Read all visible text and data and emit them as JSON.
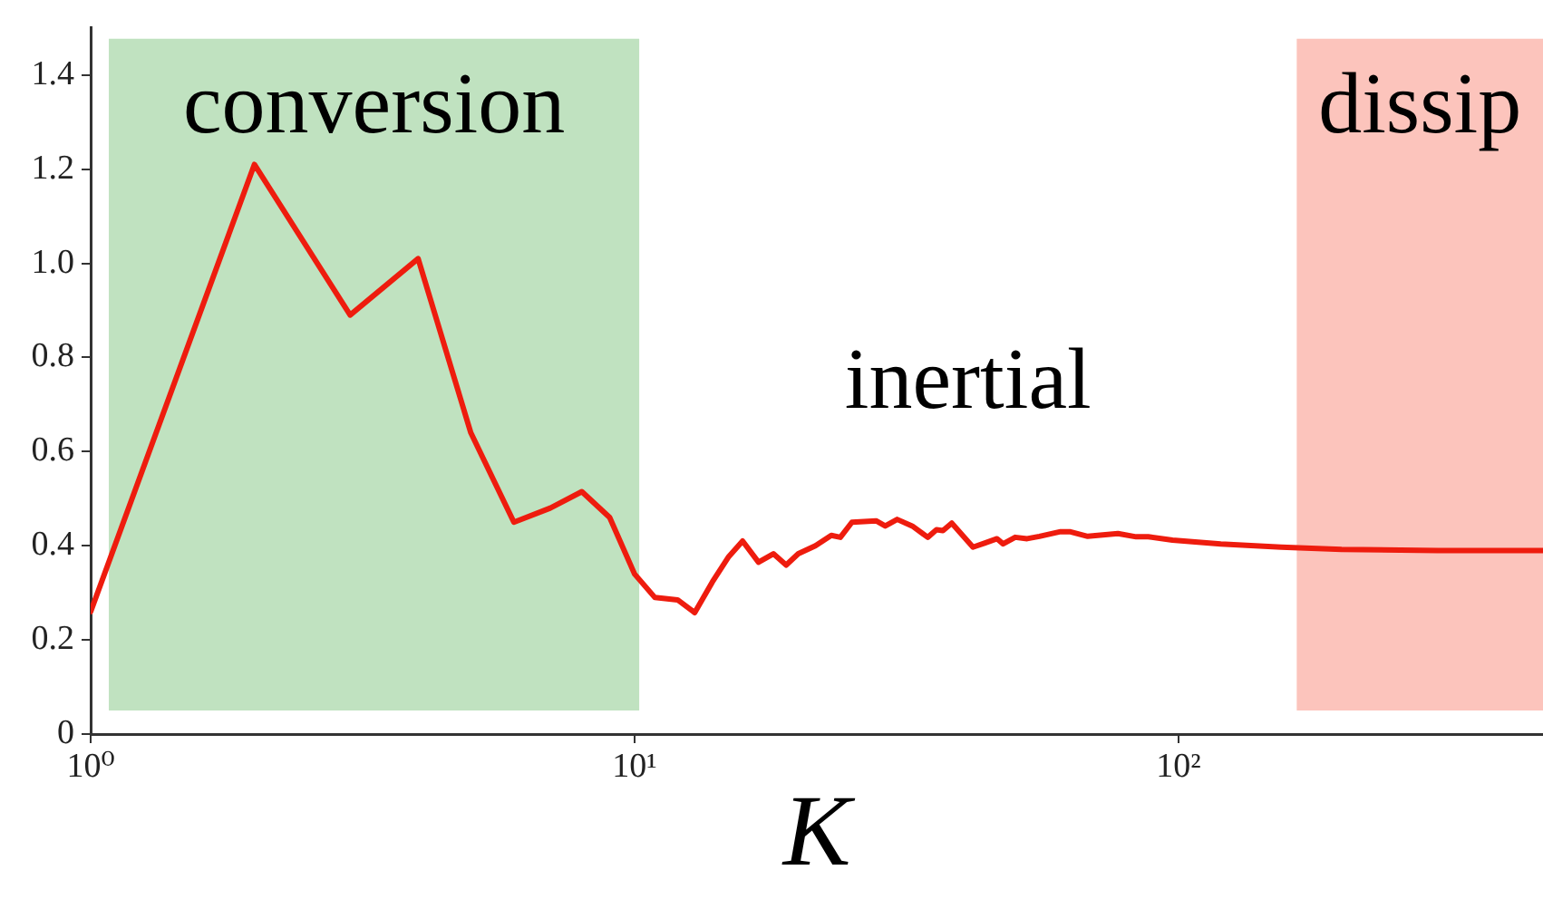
{
  "chart_data": {
    "type": "line",
    "xlabel": "K",
    "log": "x",
    "xlim": [
      1,
      468
    ],
    "xticks": [
      {
        "value": 1,
        "label": "10⁰"
      },
      {
        "value": 10,
        "label": "10¹"
      },
      {
        "value": 100,
        "label": "10²"
      }
    ],
    "ylim": [
      0,
      1.5
    ],
    "yticks": [
      0,
      0.2,
      0.4,
      0.6,
      0.8,
      {
        "value": 1,
        "label": "1.0"
      },
      1.2,
      1.4
    ],
    "grid": false,
    "legend": false,
    "marker": "none",
    "line_style": "solid",
    "bands": [
      {
        "axis": "x",
        "from": 1.08,
        "to": 10.2,
        "label": "conversion",
        "color": "#c0e2c0"
      },
      {
        "axis": "x",
        "from": 165,
        "to": 468,
        "label": "dissip",
        "color": "#fcc4bc"
      }
    ],
    "annotations": [
      "inertial"
    ],
    "series": [
      {
        "color": "#ee1c0e",
        "x": [
          1,
          2,
          3,
          4,
          5,
          6,
          7,
          8,
          9,
          10,
          10.9,
          12,
          12.9,
          13.9,
          14.9,
          15.8,
          16.9,
          18,
          19,
          20,
          21.5,
          23,
          23.9,
          25.1,
          27.8,
          28.9,
          30.4,
          32.4,
          34.6,
          35.9,
          36.9,
          38.3,
          41.9,
          44.1,
          46.4,
          47.6,
          50.1,
          52.7,
          55.5,
          60.7,
          63.1,
          68.1,
          72.6,
          77.4,
          83.6,
          88,
          97.5,
          119.6,
          154.5,
          199.5,
          300,
          468
        ],
        "values": [
          0.26,
          1.21,
          0.89,
          1.01,
          0.64,
          0.45,
          0.48,
          0.515,
          0.46,
          0.34,
          0.29,
          0.285,
          0.258,
          0.323,
          0.377,
          0.41,
          0.365,
          0.383,
          0.359,
          0.383,
          0.4,
          0.422,
          0.418,
          0.45,
          0.453,
          0.442,
          0.456,
          0.442,
          0.418,
          0.434,
          0.432,
          0.448,
          0.397,
          0.406,
          0.415,
          0.404,
          0.418,
          0.415,
          0.42,
          0.43,
          0.43,
          0.42,
          0.423,
          0.426,
          0.419,
          0.419,
          0.412,
          0.404,
          0.397,
          0.392,
          0.39,
          0.39
        ]
      }
    ]
  }
}
